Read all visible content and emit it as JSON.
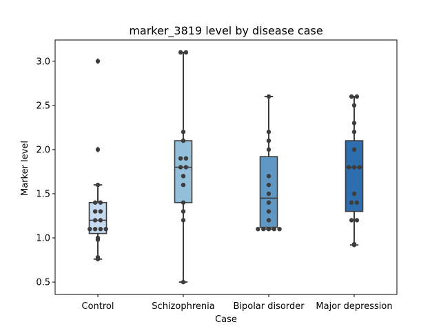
{
  "chart_data": {
    "type": "box",
    "title": "marker_3819 level by disease case",
    "xlabel": "Case",
    "ylabel": "Marker level",
    "ylim": [
      0.36,
      3.24
    ],
    "yticks": [
      0.5,
      1.0,
      1.5,
      2.0,
      2.5,
      3.0
    ],
    "ytick_labels": [
      "0.5",
      "1.0",
      "1.5",
      "2.0",
      "2.5",
      "3.0"
    ],
    "grid": false,
    "legend": "none",
    "categories": [
      "Control",
      "Schizophrenia",
      "Bipolar disorder",
      "Major depression"
    ],
    "colors": [
      "#c6dbef",
      "#93bfdb",
      "#5f97c5",
      "#2f6eae"
    ],
    "edge_color": "#3d3d3d",
    "point_color": "#3d3d3d",
    "boxes": [
      {
        "category": "Control",
        "whislo": 0.76,
        "q1": 1.05,
        "med": 1.2,
        "q3": 1.4,
        "whishi": 1.6,
        "fliers": [
          2.0,
          3.0
        ]
      },
      {
        "category": "Schizophrenia",
        "whislo": 0.5,
        "q1": 1.4,
        "med": 1.8,
        "q3": 2.1,
        "whishi": 3.1,
        "fliers": []
      },
      {
        "category": "Bipolar disorder",
        "whislo": 1.1,
        "q1": 1.12,
        "med": 1.45,
        "q3": 1.92,
        "whishi": 2.6,
        "fliers": []
      },
      {
        "category": "Major depression",
        "whislo": 0.92,
        "q1": 1.3,
        "med": 1.8,
        "q3": 2.1,
        "whishi": 2.6,
        "fliers": []
      }
    ],
    "points": [
      {
        "category": "Control",
        "values": [
          3.0,
          2.0,
          1.6,
          1.4,
          1.4,
          1.3,
          1.3,
          1.2,
          1.2,
          1.1,
          1.1,
          1.1,
          1.1,
          1.0,
          0.98,
          0.78,
          0.76
        ]
      },
      {
        "category": "Schizophrenia",
        "values": [
          3.1,
          3.1,
          2.2,
          2.1,
          1.9,
          1.9,
          1.8,
          1.8,
          1.7,
          1.6,
          1.4,
          1.3,
          1.2,
          0.5
        ]
      },
      {
        "category": "Bipolar disorder",
        "values": [
          2.6,
          2.2,
          2.1,
          2.0,
          1.7,
          1.6,
          1.5,
          1.4,
          1.3,
          1.2,
          1.1,
          1.1,
          1.1,
          1.1,
          1.1
        ]
      },
      {
        "category": "Major depression",
        "values": [
          2.6,
          2.6,
          2.5,
          2.3,
          2.2,
          2.0,
          1.8,
          1.8,
          1.8,
          1.5,
          1.4,
          1.4,
          1.2,
          1.2,
          0.93,
          0.92
        ]
      }
    ]
  }
}
